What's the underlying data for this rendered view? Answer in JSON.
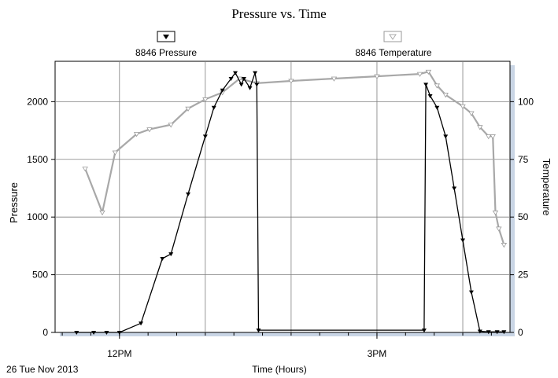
{
  "chart_data": {
    "type": "line",
    "title": "Pressure vs. Time",
    "xlabel": "Time (Hours)",
    "date_label": "26 Tue Nov 2013",
    "ylabel_left": "Pressure",
    "ylabel_right": "Temperature",
    "x_unit": "hours after midnight",
    "xlim": [
      11.25,
      16.55
    ],
    "ylim_left": [
      0,
      2350
    ],
    "ylim_right": [
      0,
      117.5
    ],
    "x_ticks": [
      {
        "value": 12,
        "label": "12PM"
      },
      {
        "value": 15,
        "label": "3PM"
      }
    ],
    "y_ticks_left": [
      "0",
      "500",
      "1000",
      "1500",
      "2000"
    ],
    "y_ticks_right": [
      "0",
      "25",
      "50",
      "75",
      "100"
    ],
    "legend": {
      "placement": "top",
      "entries": [
        "8846 Pressure",
        "8846 Temperature"
      ]
    },
    "grid": true,
    "colors": {
      "pressure": "#000000",
      "temperature": "#a8a8a8",
      "grid": "#7f7f7f"
    },
    "series": [
      {
        "name": "8846 Pressure",
        "axis": "left",
        "x": [
          11.5,
          11.7,
          11.85,
          12.0,
          12.25,
          12.5,
          12.6,
          12.8,
          13.0,
          13.1,
          13.2,
          13.3,
          13.35,
          13.42,
          13.45,
          13.52,
          13.58,
          13.6,
          13.62,
          15.55,
          15.57,
          15.62,
          15.7,
          15.8,
          15.9,
          16.0,
          16.1,
          16.2,
          16.3,
          16.4,
          16.48
        ],
        "values": [
          0,
          0,
          0,
          0,
          80,
          640,
          680,
          1200,
          1700,
          1950,
          2100,
          2200,
          2250,
          2150,
          2200,
          2120,
          2250,
          2150,
          20,
          20,
          2150,
          2050,
          1950,
          1700,
          1250,
          800,
          350,
          10,
          5,
          5,
          5
        ]
      },
      {
        "name": "8846 Temperature",
        "axis": "right",
        "x": [
          11.6,
          11.8,
          11.95,
          12.2,
          12.35,
          12.6,
          12.8,
          13.0,
          13.2,
          13.4,
          13.6,
          14.0,
          14.5,
          15.0,
          15.5,
          15.6,
          15.7,
          15.8,
          16.0,
          16.1,
          16.2,
          16.3,
          16.35,
          16.38,
          16.42,
          16.48
        ],
        "values": [
          71,
          52,
          78,
          86,
          88,
          90,
          97,
          101,
          104,
          110,
          108,
          109,
          110,
          111,
          112,
          113,
          107,
          103,
          98,
          95,
          89,
          85,
          85,
          52,
          45,
          38
        ]
      }
    ]
  }
}
